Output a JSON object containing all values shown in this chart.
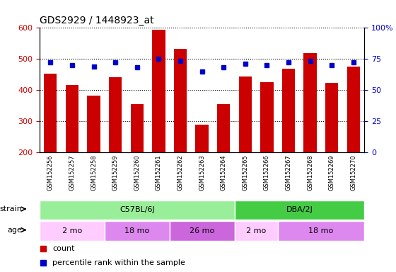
{
  "title": "GDS2929 / 1448923_at",
  "samples": [
    "GSM152256",
    "GSM152257",
    "GSM152258",
    "GSM152259",
    "GSM152260",
    "GSM152261",
    "GSM152262",
    "GSM152263",
    "GSM152264",
    "GSM152265",
    "GSM152266",
    "GSM152267",
    "GSM152268",
    "GSM152269",
    "GSM152270"
  ],
  "counts": [
    452,
    417,
    382,
    440,
    354,
    592,
    532,
    290,
    354,
    444,
    425,
    469,
    517,
    422,
    476
  ],
  "percentile_ranks": [
    72,
    70,
    69,
    72,
    68,
    75,
    73,
    65,
    68,
    71,
    70,
    72,
    73,
    70,
    72
  ],
  "ylim_left": [
    200,
    600
  ],
  "ylim_right": [
    0,
    100
  ],
  "yticks_left": [
    200,
    300,
    400,
    500,
    600
  ],
  "yticks_right": [
    0,
    25,
    50,
    75,
    100
  ],
  "bar_color": "#cc0000",
  "dot_color": "#0000cc",
  "strain_groups": [
    {
      "label": "C57BL/6J",
      "start": 0,
      "end": 9,
      "color": "#99ee99"
    },
    {
      "label": "DBA/2J",
      "start": 9,
      "end": 15,
      "color": "#44cc44"
    }
  ],
  "age_groups": [
    {
      "label": "2 mo",
      "start": 0,
      "end": 3,
      "color": "#ffccff"
    },
    {
      "label": "18 mo",
      "start": 3,
      "end": 6,
      "color": "#dd88ee"
    },
    {
      "label": "26 mo",
      "start": 6,
      "end": 9,
      "color": "#dd88ee"
    },
    {
      "label": "2 mo",
      "start": 9,
      "end": 11,
      "color": "#ffccff"
    },
    {
      "label": "18 mo",
      "start": 11,
      "end": 15,
      "color": "#dd88ee"
    }
  ],
  "background_color": "#ffffff",
  "grid_color": "#000000",
  "tick_color_left": "#cc0000",
  "tick_color_right": "#0000cc",
  "xticklabel_bg": "#d0d0d0",
  "legend_items": [
    {
      "label": "count",
      "color": "#cc0000"
    },
    {
      "label": "percentile rank within the sample",
      "color": "#0000cc"
    }
  ]
}
